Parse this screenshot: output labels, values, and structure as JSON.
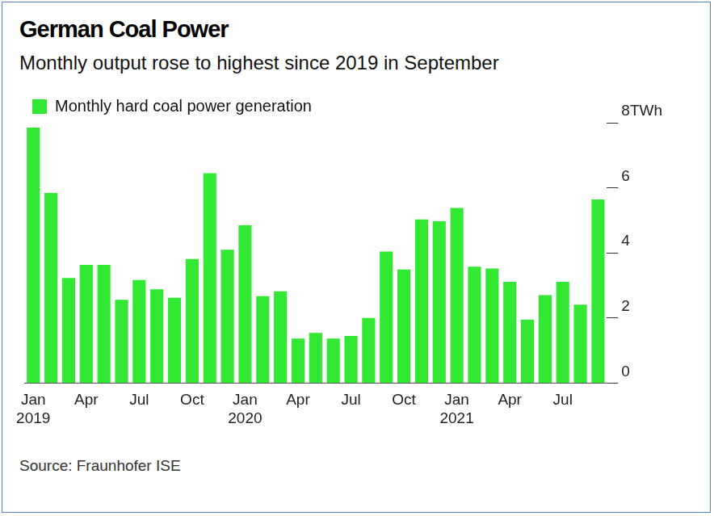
{
  "chart_data": {
    "type": "bar",
    "title": "German Coal Power",
    "subtitle": "Monthly output rose to highest since 2019 in September",
    "source": "Source: Fraunhofer ISE",
    "categories": [
      "Jan 2019",
      null,
      null,
      "Apr",
      null,
      null,
      "Jul",
      null,
      null,
      "Oct",
      null,
      null,
      "Jan 2020",
      null,
      null,
      "Apr",
      null,
      null,
      "Jul",
      null,
      null,
      "Oct",
      null,
      null,
      "Jan 2021",
      null,
      null,
      "Apr",
      null,
      null,
      "Jul",
      null,
      null
    ],
    "series": [
      {
        "name": "Monthly hard coal power generation",
        "color": "#33e833",
        "values": [
          7.85,
          5.84,
          3.23,
          3.63,
          3.63,
          2.56,
          3.17,
          2.88,
          2.62,
          3.81,
          6.45,
          4.1,
          4.85,
          2.67,
          2.82,
          1.37,
          1.54,
          1.37,
          1.45,
          2.0,
          4.04,
          3.49,
          5.03,
          4.97,
          5.38,
          3.58,
          3.52,
          3.11,
          1.95,
          2.7,
          3.11,
          2.41,
          5.64
        ]
      }
    ],
    "ylim": [
      0,
      8
    ],
    "yticks": [
      0,
      2,
      4,
      6,
      {
        "value": 8,
        "label": "8TWh"
      }
    ],
    "grid": false,
    "legend": "top-left"
  }
}
